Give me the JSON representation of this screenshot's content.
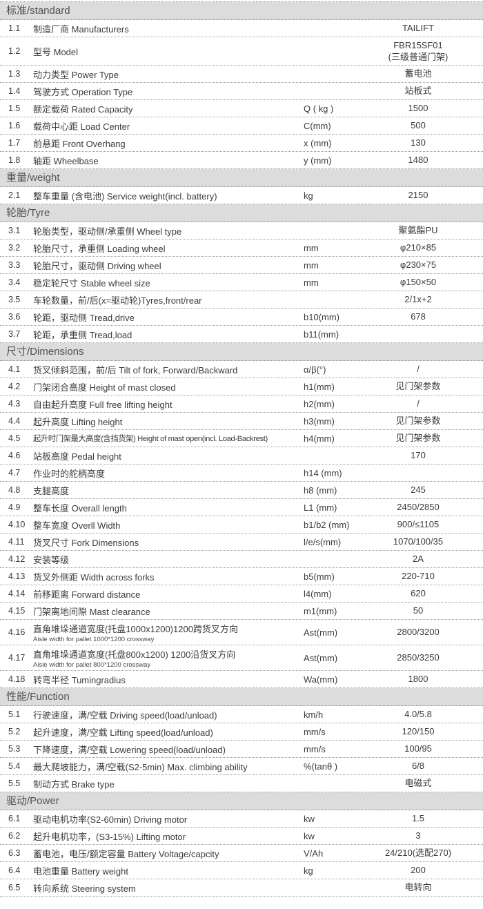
{
  "page": {
    "background_color": "#ffffff",
    "header_bg_color": "#dcdcdc",
    "text_color": "#3b3b3b",
    "divider_color": "#9b9b9b"
  },
  "table": {
    "sections": [
      {
        "title": "标准/standard",
        "rows": [
          {
            "no": "1.1",
            "label": "制造厂商 Manufacturers",
            "unit": "",
            "value": "TAILIFT"
          },
          {
            "no": "1.2",
            "label": "型号 Model",
            "unit": "",
            "value": "FBR15SF01\n(三级普通门架)"
          },
          {
            "no": "1.3",
            "label": "动力类型 Power Type",
            "unit": "",
            "value": "蓄电池"
          },
          {
            "no": "1.4",
            "label": "驾驶方式 Operation Type",
            "unit": "",
            "value": "站板式"
          },
          {
            "no": "1.5",
            "label": "额定载荷 Rated Capacity",
            "unit": "Q ( kg )",
            "value": "1500"
          },
          {
            "no": "1.6",
            "label": "载荷中心距 Load Center",
            "unit": "C(mm)",
            "value": "500"
          },
          {
            "no": "1.7",
            "label": "前悬距 Front Overhang",
            "unit": "x (mm)",
            "value": "130"
          },
          {
            "no": "1.8",
            "label": "轴距 Wheelbase",
            "unit": "y (mm)",
            "value": "1480"
          }
        ]
      },
      {
        "title": "重量/weight",
        "rows": [
          {
            "no": "2.1",
            "label": "整车重量 (含电池) Service weight(incl. battery)",
            "unit": "kg",
            "value": "2150"
          }
        ]
      },
      {
        "title": "轮胎/Tyre",
        "rows": [
          {
            "no": "3.1",
            "label": "轮胎类型，驱动侧/承重侧  Wheel type",
            "unit": "",
            "value": "聚氨酯PU"
          },
          {
            "no": "3.2",
            "label": "轮胎尺寸，承重侧 Loading wheel",
            "unit": "mm",
            "value": "φ210×85"
          },
          {
            "no": "3.3",
            "label": "轮胎尺寸，驱动侧 Driving wheel",
            "unit": "mm",
            "value": "φ230×75"
          },
          {
            "no": "3.4",
            "label": "稳定轮尺寸 Stable wheel size",
            "unit": "mm",
            "value": "φ150×50"
          },
          {
            "no": "3.5",
            "label": "车轮数量，前/后(x=驱动轮)Tyres,front/rear",
            "unit": "",
            "value": "2/1x+2"
          },
          {
            "no": "3.6",
            "label": "轮距，驱动侧 Tread,drive",
            "unit": "b10(mm)",
            "value": "678"
          },
          {
            "no": "3.7",
            "label": "轮距，承重侧 Tread,load",
            "unit": "b11(mm)",
            "value": ""
          }
        ]
      },
      {
        "title": "尺寸/Dimensions",
        "rows": [
          {
            "no": "4.1",
            "label": "货叉倾斜范围，前/后  Tilt of fork, Forward/Backward",
            "unit": "α/β(°)",
            "value": "/"
          },
          {
            "no": "4.2",
            "label": "门架闭合高度 Height of mast closed",
            "unit": "h1(mm)",
            "value": "见门架参数"
          },
          {
            "no": "4.3",
            "label": "自由起升高度 Full free lifting height",
            "unit": "h2(mm)",
            "value": "/"
          },
          {
            "no": "4.4",
            "label": "起升高度 Lifting height",
            "unit": "h3(mm)",
            "value": "见门架参数"
          },
          {
            "no": "4.5",
            "label": "起升时门架最大高度(含挡货架) Height of mast open(incl. Load-Backrest)",
            "unit": "h4(mm)",
            "value": "见门架参数"
          },
          {
            "no": "4.6",
            "label": "站板高度 Pedal height",
            "unit": "",
            "value": "170"
          },
          {
            "no": "4.7",
            "label": "作业时的舵柄高度",
            "unit": "h14 (mm)",
            "value": ""
          },
          {
            "no": "4.8",
            "label": "支腿高度",
            "unit": "h8 (mm)",
            "value": "245"
          },
          {
            "no": "4.9",
            "label": "整车长度 Overall length",
            "unit": "L1 (mm)",
            "value": "2450/2850"
          },
          {
            "no": "4.10",
            "label": "整车宽度 Overll Width",
            "unit": "b1/b2 (mm)",
            "value": "900/≤1105"
          },
          {
            "no": "4.11",
            "label": "货叉尺寸 Fork Dimensions",
            "unit": "l/e/s(mm)",
            "value": "1070/100/35"
          },
          {
            "no": "4.12",
            "label": "安装等级",
            "unit": "",
            "value": "2A"
          },
          {
            "no": "4.13",
            "label": "货叉外侧距 Width across forks",
            "unit": "b5(mm)",
            "value": "220-710"
          },
          {
            "no": "4.14",
            "label": "前移距离 Forward distance",
            "unit": "l4(mm)",
            "value": "620"
          },
          {
            "no": "4.15",
            "label": "门架离地间隙  Mast clearance",
            "unit": "m1(mm)",
            "value": "50"
          },
          {
            "no": "4.16",
            "label": "直角堆垛通道宽度(托盘1000x1200)1200跨货叉方向",
            "sublabel": "Aisle width for pallet 1000*1200 crossway",
            "unit": "Ast(mm)",
            "value": "2800/3200"
          },
          {
            "no": "4.17",
            "label": "直角堆垛通道宽度(托盘800x1200) 1200沿货叉方向",
            "sublabel": "Aisle width for pallet 800*1200 crossway",
            "unit": "Ast(mm)",
            "value": "2850/3250"
          },
          {
            "no": "4.18",
            "label": "转弯半径 Tumingradius",
            "unit": "Wa(mm)",
            "value": "1800"
          }
        ]
      },
      {
        "title": "性能/Function",
        "rows": [
          {
            "no": "5.1",
            "label": "行驶速度，满/空载 Driving speed(load/unload)",
            "unit": "km/h",
            "value": "4.0/5.8"
          },
          {
            "no": "5.2",
            "label": "起升速度，满/空载 Lifting speed(load/unload)",
            "unit": "mm/s",
            "value": "120/150"
          },
          {
            "no": "5.3",
            "label": "下降速度，满/空载 Lowering speed(load/unload)",
            "unit": "mm/s",
            "value": "100/95"
          },
          {
            "no": "5.4",
            "label": "最大爬坡能力，满/空载(S2-5min) Max. climbing ability",
            "unit": "%(tanθ )",
            "value": "6/8"
          },
          {
            "no": "5.5",
            "label": "制动方式 Brake type",
            "unit": "",
            "value": "电磁式"
          }
        ]
      },
      {
        "title": "驱动/Power",
        "rows": [
          {
            "no": "6.1",
            "label": "驱动电机功率(S2-60min) Driving motor",
            "unit": "kw",
            "value": "1.5"
          },
          {
            "no": "6.2",
            "label": "起升电机功率，(S3-15%) Lifting motor",
            "unit": "kw",
            "value": "3"
          },
          {
            "no": "6.3",
            "label": "蓄电池，电压/额定容量 Battery Voltage/capcity",
            "unit": "V/Ah",
            "value": "24/210(选配270)"
          },
          {
            "no": "6.4",
            "label": "电池重量 Battery weight",
            "unit": "kg",
            "value": "200"
          },
          {
            "no": "6.5",
            "label": "转向系统 Steering system",
            "unit": "",
            "value": "电转向"
          }
        ]
      }
    ]
  }
}
